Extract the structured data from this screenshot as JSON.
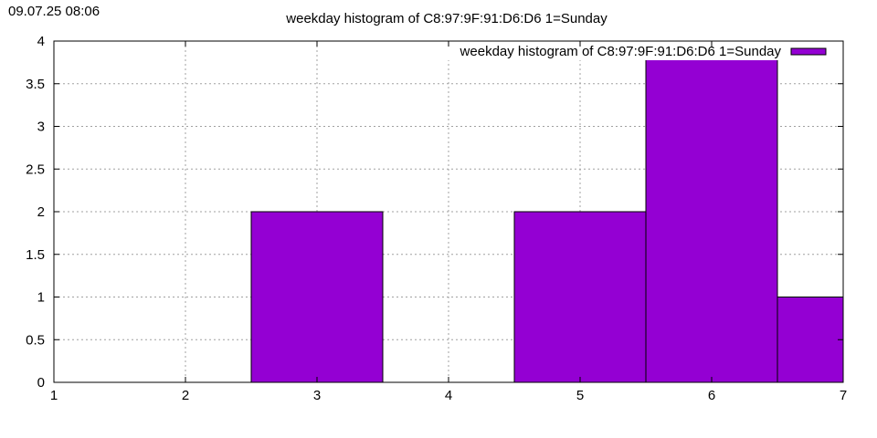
{
  "timestamp": "09.07.25 08:06",
  "chart_data": {
    "type": "bar",
    "title": "weekday histogram of C8:97:9F:91:D6:D6 1=Sunday",
    "xlabel": "",
    "ylabel": "",
    "xlim": [
      1,
      7
    ],
    "ylim": [
      0,
      4
    ],
    "x_ticks": [
      "1",
      "2",
      "3",
      "4",
      "5",
      "6",
      "7"
    ],
    "y_ticks": [
      "0",
      "0.5",
      "1",
      "1.5",
      "2",
      "2.5",
      "3",
      "3.5",
      "4"
    ],
    "grid": true,
    "legend_position": "top-right",
    "series": [
      {
        "name": "weekday histogram of C8:97:9F:91:D6:D6 1=Sunday",
        "color": "#9400d3",
        "x": [
          3,
          5,
          6,
          7
        ],
        "values": [
          2,
          2,
          4,
          1
        ]
      }
    ]
  }
}
